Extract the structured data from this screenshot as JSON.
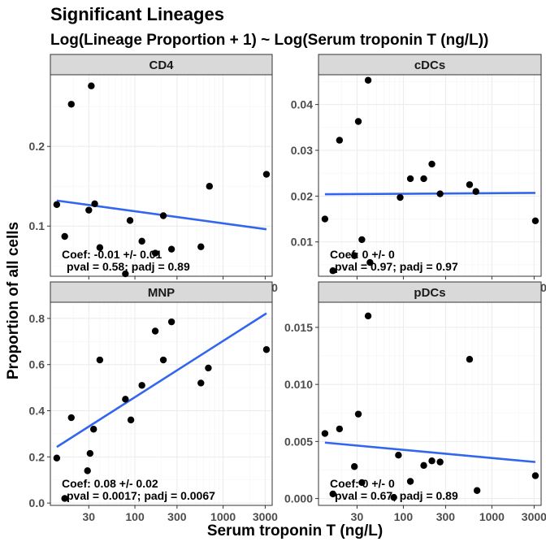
{
  "header": {
    "title": "Significant Lineages",
    "subtitle": "Log(Lineage Proportion + 1) ~ Log(Serum troponin T (ng/L))"
  },
  "axes": {
    "xlabel": "Serum troponin T (ng/L)",
    "ylabel": "Proportion of all cells"
  },
  "chart_data": [
    {
      "type": "scatter",
      "panel": "CD4",
      "x_scale": "log10",
      "xlim": [
        11,
        3600
      ],
      "ylim": [
        0.037,
        0.29
      ],
      "x_ticks": [
        30,
        100,
        300,
        1000,
        3000
      ],
      "x_tick_labels": [
        "30",
        "100",
        "300",
        "1000",
        "3000"
      ],
      "y_ticks": [
        0.1,
        0.2
      ],
      "y_tick_labels": [
        "0.1",
        "0.2"
      ],
      "points": [
        {
          "x": 13,
          "y": 0.127
        },
        {
          "x": 16,
          "y": 0.087
        },
        {
          "x": 19,
          "y": 0.253
        },
        {
          "x": 30,
          "y": 0.12
        },
        {
          "x": 32,
          "y": 0.276
        },
        {
          "x": 35,
          "y": 0.128
        },
        {
          "x": 40,
          "y": 0.073
        },
        {
          "x": 78,
          "y": 0.04
        },
        {
          "x": 88,
          "y": 0.107
        },
        {
          "x": 120,
          "y": 0.081
        },
        {
          "x": 170,
          "y": 0.066
        },
        {
          "x": 210,
          "y": 0.113
        },
        {
          "x": 260,
          "y": 0.071
        },
        {
          "x": 560,
          "y": 0.074
        },
        {
          "x": 700,
          "y": 0.15
        },
        {
          "x": 3100,
          "y": 0.165
        }
      ],
      "fit": {
        "x": [
          13,
          3100
        ],
        "y": [
          0.132,
          0.096
        ]
      },
      "annotations": [
        "Coef: -0.01 +/- 0.01",
        "pval = 0.58; padj = 0.89"
      ]
    },
    {
      "type": "scatter",
      "panel": "cDCs",
      "x_scale": "log10",
      "xlim": [
        11,
        3600
      ],
      "ylim": [
        0.0025,
        0.0465
      ],
      "x_ticks": [
        30,
        100,
        300,
        1000,
        3000
      ],
      "x_tick_labels": [
        "30",
        "100",
        "300",
        "1000",
        "3000"
      ],
      "y_ticks": [
        0.01,
        0.02,
        0.03,
        0.04
      ],
      "y_tick_labels": [
        "0.01",
        "0.02",
        "0.03",
        "0.04"
      ],
      "points": [
        {
          "x": 13,
          "y": 0.015
        },
        {
          "x": 16,
          "y": 0.0037
        },
        {
          "x": 19,
          "y": 0.0322
        },
        {
          "x": 28,
          "y": 0.007
        },
        {
          "x": 31,
          "y": 0.0363
        },
        {
          "x": 34,
          "y": 0.0105
        },
        {
          "x": 40,
          "y": 0.0453
        },
        {
          "x": 42,
          "y": 0.0055
        },
        {
          "x": 92,
          "y": 0.0197
        },
        {
          "x": 120,
          "y": 0.0238
        },
        {
          "x": 170,
          "y": 0.0238
        },
        {
          "x": 210,
          "y": 0.027
        },
        {
          "x": 260,
          "y": 0.0205
        },
        {
          "x": 560,
          "y": 0.0225
        },
        {
          "x": 660,
          "y": 0.021
        },
        {
          "x": 3100,
          "y": 0.0146
        }
      ],
      "fit": {
        "x": [
          13,
          3100
        ],
        "y": [
          0.0204,
          0.0207
        ]
      },
      "annotations": [
        "Coef: 0 +/- 0",
        "pval = 0.97; padj = 0.97"
      ]
    },
    {
      "type": "scatter",
      "panel": "MNP",
      "x_scale": "log10",
      "xlim": [
        11,
        3600
      ],
      "ylim": [
        -0.01,
        0.87
      ],
      "x_ticks": [
        30,
        100,
        300,
        1000,
        3000
      ],
      "x_tick_labels": [
        "30",
        "100",
        "300",
        "1000",
        "3000"
      ],
      "y_ticks": [
        0.0,
        0.2,
        0.4,
        0.6,
        0.8
      ],
      "y_tick_labels": [
        "0.0",
        "0.2",
        "0.4",
        "0.6",
        "0.8"
      ],
      "points": [
        {
          "x": 13,
          "y": 0.195
        },
        {
          "x": 16,
          "y": 0.02
        },
        {
          "x": 19,
          "y": 0.37
        },
        {
          "x": 29,
          "y": 0.14
        },
        {
          "x": 31,
          "y": 0.215
        },
        {
          "x": 34,
          "y": 0.32
        },
        {
          "x": 40,
          "y": 0.62
        },
        {
          "x": 78,
          "y": 0.45
        },
        {
          "x": 90,
          "y": 0.36
        },
        {
          "x": 120,
          "y": 0.51
        },
        {
          "x": 170,
          "y": 0.745
        },
        {
          "x": 210,
          "y": 0.62
        },
        {
          "x": 260,
          "y": 0.785
        },
        {
          "x": 560,
          "y": 0.52
        },
        {
          "x": 680,
          "y": 0.585
        },
        {
          "x": 3100,
          "y": 0.665
        }
      ],
      "fit": {
        "x": [
          13,
          3100
        ],
        "y": [
          0.243,
          0.822
        ]
      },
      "annotations": [
        "Coef: 0.08 +/- 0.02",
        "pval = 0.0017; padj = 0.0067"
      ]
    },
    {
      "type": "scatter",
      "panel": "pDCs",
      "x_scale": "log10",
      "xlim": [
        11,
        3600
      ],
      "ylim": [
        -0.0006,
        0.0172
      ],
      "x_ticks": [
        30,
        100,
        300,
        1000,
        3000
      ],
      "x_tick_labels": [
        "30",
        "100",
        "300",
        "1000",
        "3000"
      ],
      "y_ticks": [
        0.0,
        0.005,
        0.01,
        0.015
      ],
      "y_tick_labels": [
        "0.000",
        "0.005",
        "0.010",
        "0.015"
      ],
      "points": [
        {
          "x": 13,
          "y": 0.0057
        },
        {
          "x": 16,
          "y": 0.0004
        },
        {
          "x": 19,
          "y": 0.0061
        },
        {
          "x": 28,
          "y": 0.0028
        },
        {
          "x": 31,
          "y": 0.0074
        },
        {
          "x": 34,
          "y": 0.0014
        },
        {
          "x": 40,
          "y": 0.016
        },
        {
          "x": 78,
          "y": 0.0001
        },
        {
          "x": 88,
          "y": 0.0038
        },
        {
          "x": 120,
          "y": 0.0015
        },
        {
          "x": 170,
          "y": 0.0029
        },
        {
          "x": 210,
          "y": 0.0033
        },
        {
          "x": 260,
          "y": 0.0032
        },
        {
          "x": 560,
          "y": 0.0122
        },
        {
          "x": 680,
          "y": 0.0007
        },
        {
          "x": 3100,
          "y": 0.002
        }
      ],
      "fit": {
        "x": [
          13,
          3100
        ],
        "y": [
          0.0049,
          0.0032
        ]
      },
      "annotations": [
        "Coef: 0 +/- 0",
        "pval = 0.67; padj = 0.89"
      ]
    }
  ]
}
